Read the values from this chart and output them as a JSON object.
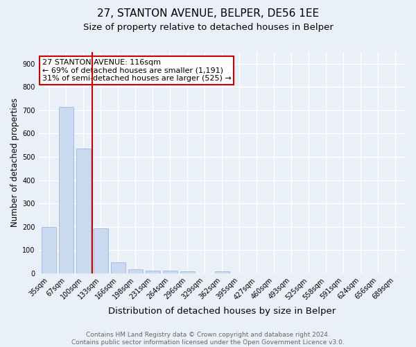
{
  "title": "27, STANTON AVENUE, BELPER, DE56 1EE",
  "subtitle": "Size of property relative to detached houses in Belper",
  "xlabel": "Distribution of detached houses by size in Belper",
  "ylabel": "Number of detached properties",
  "categories": [
    "35sqm",
    "67sqm",
    "100sqm",
    "133sqm",
    "166sqm",
    "198sqm",
    "231sqm",
    "264sqm",
    "296sqm",
    "329sqm",
    "362sqm",
    "395sqm",
    "427sqm",
    "460sqm",
    "493sqm",
    "525sqm",
    "558sqm",
    "591sqm",
    "624sqm",
    "656sqm",
    "689sqm"
  ],
  "values": [
    200,
    714,
    536,
    192,
    46,
    16,
    12,
    10,
    8,
    0,
    8,
    0,
    0,
    0,
    0,
    0,
    0,
    0,
    0,
    0,
    0
  ],
  "bar_color": "#c9d9f0",
  "bar_edgecolor": "#a0b8d8",
  "vline_color": "#cc0000",
  "annotation_text": "27 STANTON AVENUE: 116sqm\n← 69% of detached houses are smaller (1,191)\n31% of semi-detached houses are larger (525) →",
  "annotation_box_color": "white",
  "annotation_box_edgecolor": "#cc0000",
  "ylim": [
    0,
    950
  ],
  "yticks": [
    0,
    100,
    200,
    300,
    400,
    500,
    600,
    700,
    800,
    900
  ],
  "footer": "Contains HM Land Registry data © Crown copyright and database right 2024.\nContains public sector information licensed under the Open Government Licence v3.0.",
  "background_color": "#eaf0f8",
  "grid_color": "white",
  "title_fontsize": 11,
  "subtitle_fontsize": 9.5,
  "xlabel_fontsize": 9.5,
  "ylabel_fontsize": 8.5,
  "tick_fontsize": 7,
  "annotation_fontsize": 8,
  "footer_fontsize": 6.5
}
